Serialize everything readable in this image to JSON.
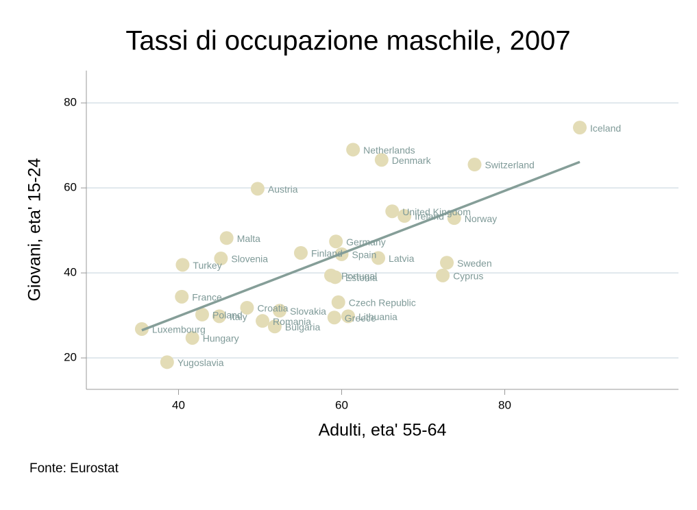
{
  "chart_data": {
    "type": "scatter",
    "title": "Tassi di occupazione maschile, 2007",
    "xlabel": "Adulti, eta' 55-64",
    "ylabel": "Giovani, eta' 15-24",
    "note": "Fonte: Eurostat",
    "xlim": [
      28.7,
      101.3
    ],
    "ylim": [
      12.6,
      87.6
    ],
    "xticks": [
      40,
      60,
      80
    ],
    "yticks": [
      20,
      40,
      60,
      80
    ],
    "grid": true,
    "color": "#e3dcb6",
    "label_color": "#7f9a98",
    "labels": [
      "Iceland",
      "Netherlands",
      "Denmark",
      "Switzerland",
      "Austria",
      "United Kingdom",
      "Ireland",
      "Norway",
      "Malta",
      "Germany",
      "Finland",
      "Spain",
      "Latvia",
      "Slovenia",
      "Turkey",
      "Sweden",
      "Cyprus",
      "Portugal",
      "Estonia",
      "France",
      "Czech Republic",
      "Croatia",
      "Slovakia",
      "Poland",
      "Italy",
      "Romania",
      "Lithuania",
      "Greece",
      "Bulgaria",
      "Luxembourg",
      "Hungary",
      "Yugoslavia"
    ],
    "x": [
      89.2,
      61.4,
      64.9,
      76.3,
      49.7,
      66.2,
      67.7,
      73.8,
      45.9,
      59.3,
      55.0,
      60.0,
      64.5,
      45.2,
      40.5,
      72.9,
      72.4,
      58.7,
      59.2,
      40.4,
      59.6,
      48.4,
      52.4,
      42.9,
      45.0,
      50.3,
      60.8,
      59.1,
      51.8,
      35.5,
      41.7,
      38.6
    ],
    "y": [
      74.2,
      69.0,
      66.6,
      65.5,
      59.8,
      54.5,
      53.4,
      52.9,
      48.2,
      47.4,
      44.7,
      44.4,
      43.5,
      43.4,
      41.9,
      42.4,
      39.4,
      39.4,
      39.0,
      34.4,
      33.1,
      31.8,
      31.1,
      30.2,
      29.8,
      28.7,
      29.8,
      29.5,
      27.4,
      26.8,
      24.7,
      19.0
    ],
    "fit_line": {
      "color": "#859e98",
      "x": [
        35.5,
        89.2
      ],
      "y": [
        26.5,
        66.1
      ]
    }
  }
}
